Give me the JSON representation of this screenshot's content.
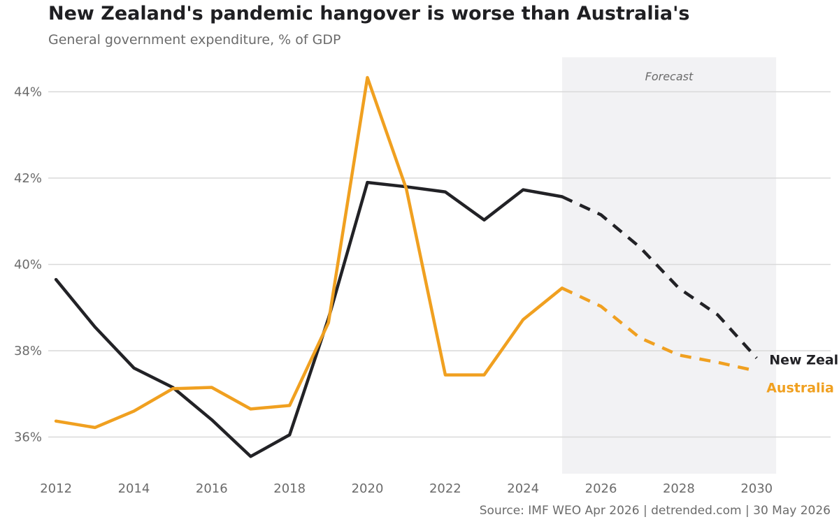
{
  "title": "New Zealand's pandemic hangover is worse than Australia's",
  "subtitle": "General government expenditure, % of GDP",
  "source": "Source: IMF WEO Apr 2026 | detrended.com | 30 May 2026",
  "colors": {
    "new_zealand": "#222226",
    "australia": "#f0a020",
    "forecast_band": "#f2f2f4",
    "grid": "#d9d9d9"
  },
  "chart_data": {
    "type": "line",
    "title": "",
    "xlabel": "",
    "ylabel": "",
    "x": [
      2012,
      2013,
      2014,
      2015,
      2016,
      2017,
      2018,
      2019,
      2020,
      2021,
      2022,
      2023,
      2024,
      2025,
      2026,
      2027,
      2028,
      2029,
      2030
    ],
    "xlim": [
      2011.8,
      2031.9
    ],
    "ylim": [
      35.15,
      44.8
    ],
    "x_ticks": [
      2012,
      2014,
      2016,
      2018,
      2020,
      2022,
      2024,
      2026,
      2028,
      2030
    ],
    "y_ticks": [
      36,
      38,
      40,
      42,
      44
    ],
    "y_tick_labels": [
      "36%",
      "38%",
      "40%",
      "42%",
      "44%"
    ],
    "grid": "horizontal",
    "forecast": {
      "label": "Forecast",
      "start": 2025,
      "end": 2030.5
    },
    "series": [
      {
        "name": "New Zealand",
        "key": "new_zealand",
        "values": [
          39.65,
          38.55,
          37.6,
          37.15,
          36.4,
          35.55,
          36.05,
          38.75,
          41.9,
          41.8,
          41.68,
          41.03,
          41.73,
          41.57,
          41.15,
          40.4,
          39.45,
          38.83,
          37.83
        ]
      },
      {
        "name": "Australia",
        "key": "australia",
        "values": [
          36.37,
          36.22,
          36.6,
          37.12,
          37.15,
          36.65,
          36.73,
          38.65,
          44.33,
          41.75,
          37.44,
          37.44,
          38.72,
          39.45,
          39.03,
          38.3,
          37.9,
          37.73,
          37.53
        ]
      }
    ]
  }
}
